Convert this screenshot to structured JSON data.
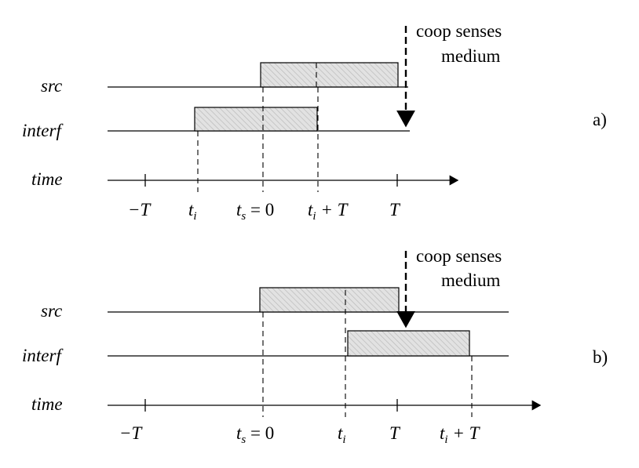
{
  "panels": [
    {
      "label": "a)",
      "rows": [
        "src",
        "interf",
        "time"
      ],
      "note": [
        "coop senses",
        "medium"
      ],
      "ticks": [
        {
          "main": "−T"
        },
        {
          "main": "t",
          "sub": "i"
        },
        {
          "main": "t",
          "sub": "s",
          "tail": " = 0"
        },
        {
          "main": "t",
          "sub": "i",
          "tail": " + T"
        },
        {
          "main": "T"
        }
      ]
    },
    {
      "label": "b)",
      "rows": [
        "src",
        "interf",
        "time"
      ],
      "note": [
        "coop senses",
        "medium"
      ],
      "ticks": [
        {
          "main": "−T"
        },
        {
          "main": "t",
          "sub": "s",
          "tail": " = 0"
        },
        {
          "main": "t",
          "sub": "i"
        },
        {
          "main": "T"
        },
        {
          "main": "t",
          "sub": "i",
          "tail": " + T"
        }
      ]
    }
  ]
}
